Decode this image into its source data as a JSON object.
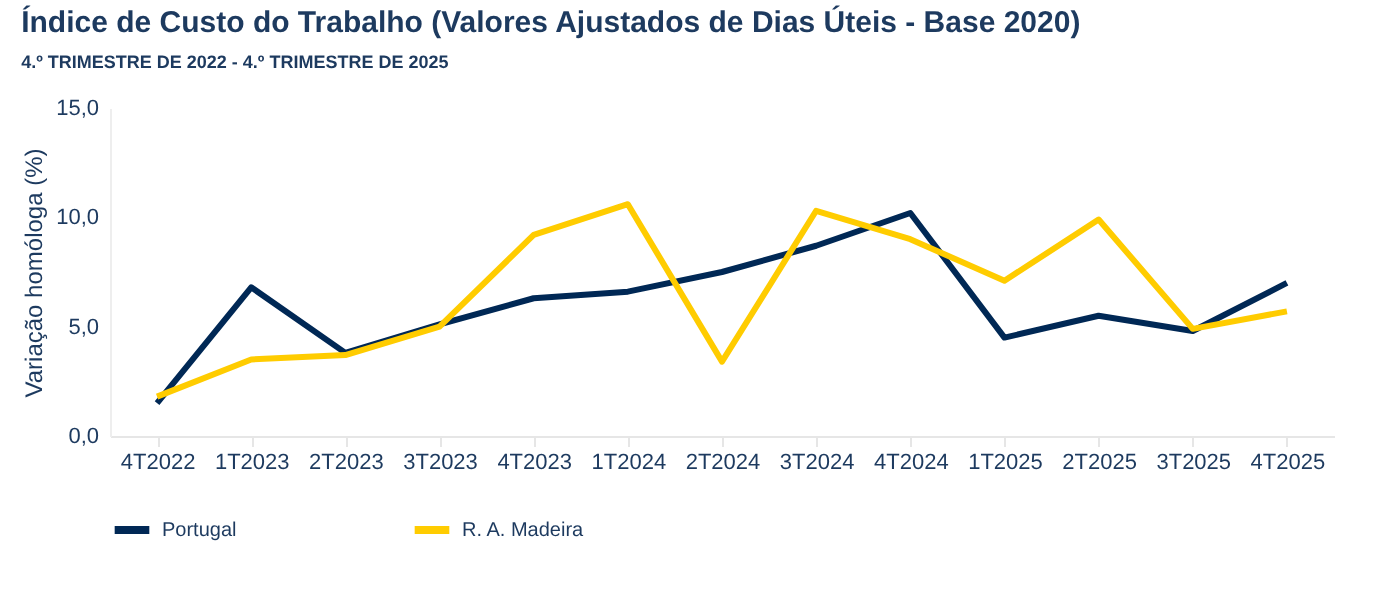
{
  "chart_data": {
    "type": "line",
    "title": "Índice de Custo do Trabalho (Valores Ajustados de Dias Úteis - Base 2020)",
    "subtitle": "4.º TRIMESTRE DE 2022 - 4.º TRIMESTRE DE 2025",
    "ylabel": "Variação homóloga (%)",
    "categories": [
      "4T2022",
      "1T2023",
      "2T2023",
      "3T2023",
      "4T2023",
      "1T2024",
      "2T2024",
      "3T2024",
      "4T2024",
      "1T2025",
      "2T2025",
      "3T2025",
      "4T2025"
    ],
    "series": [
      {
        "name": "Portugal",
        "color": "#002855",
        "values": [
          1.5,
          6.8,
          3.8,
          5.1,
          6.3,
          6.6,
          7.5,
          8.7,
          10.2,
          4.5,
          5.5,
          4.8,
          7.0
        ]
      },
      {
        "name": "R. A. Madeira",
        "color": "#ffcc00",
        "values": [
          1.8,
          3.5,
          3.7,
          5.0,
          9.2,
          10.6,
          3.4,
          10.3,
          9.0,
          7.1,
          9.9,
          4.9,
          5.7
        ]
      }
    ],
    "ylim": [
      0,
      15
    ],
    "yticks": [
      {
        "value": 0,
        "label": "0,0"
      },
      {
        "value": 5,
        "label": "5,0"
      },
      {
        "value": 10,
        "label": "10,0"
      },
      {
        "value": 15,
        "label": "15,0"
      }
    ],
    "grid": false,
    "legend": "bottom",
    "marker": "none",
    "line_style": "solid"
  }
}
